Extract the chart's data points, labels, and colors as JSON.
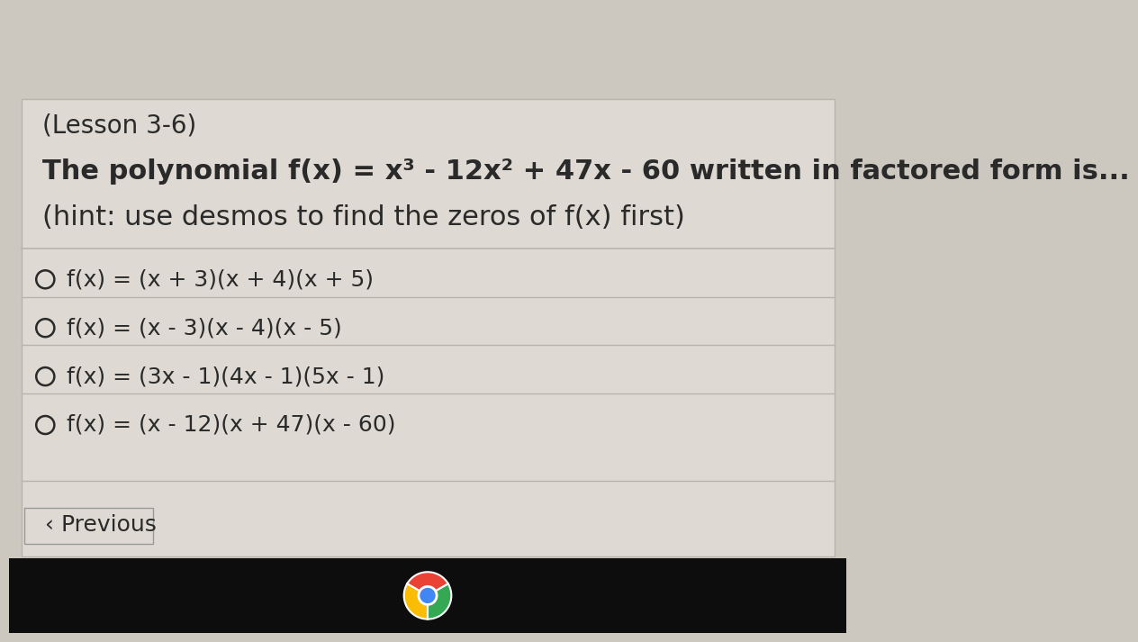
{
  "lesson_label": "(Lesson 3-6)",
  "question_text_parts": [
    {
      "text": "The polynomial f(x) = x",
      "bold": false,
      "super": null
    },
    {
      "text": "3",
      "bold": true,
      "super": true
    },
    {
      "text": " - 12x",
      "bold": false,
      "super": null
    },
    {
      "text": "2",
      "bold": true,
      "super": true
    },
    {
      "text": " + 47x - 60 written in factored form is...",
      "bold": false,
      "super": null
    }
  ],
  "hint_line": "(hint: use desmos to find the zeros of f(x) first)",
  "choices": [
    "f(x) = (x + 3)(x + 4)(x + 5)",
    "f(x) = (x - 3)(x - 4)(x - 5)",
    "f(x) = (3x - 1)(4x - 1)(5x - 1)",
    "f(x) = (x - 12)(x + 47)(x - 60)"
  ],
  "prev_button_text": "‹ Previous",
  "bg_color": "#cdc8bf",
  "content_bg_color": "#dedad3",
  "text_color": "#2a2a2a",
  "circle_color": "#2a2a2a",
  "bottom_bar_color": "#0d0d0d",
  "prev_btn_bg": "#dedad3",
  "prev_btn_border": "#999999",
  "separator_color": "#b8b3ab",
  "font_size_lesson": 20,
  "font_size_question": 22,
  "font_size_hint": 22,
  "font_size_choice": 18,
  "font_size_prev": 18
}
